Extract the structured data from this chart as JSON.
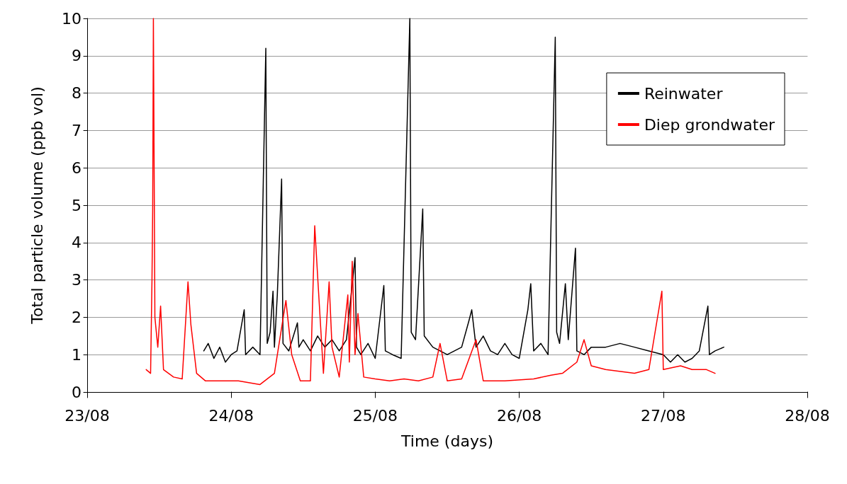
{
  "chart_data": {
    "type": "line",
    "xlabel": "Time (days)",
    "ylabel": "Total particle volume (ppb vol)",
    "xlim": [
      "--08-23",
      "--08-28"
    ],
    "xticks": [
      {
        "value": "--08-23",
        "label": "23/08"
      },
      {
        "value": "--08-24",
        "label": "24/08"
      },
      {
        "value": "--08-25",
        "label": "25/08"
      },
      {
        "value": "--08-26",
        "label": "26/08"
      },
      {
        "value": "--08-27",
        "label": "27/08"
      },
      {
        "value": "--08-28",
        "label": "28/08"
      }
    ],
    "ylim": [
      0,
      10
    ],
    "yticks": [
      0,
      1,
      2,
      3,
      4,
      5,
      6,
      7,
      8,
      9,
      10
    ],
    "grid": "y",
    "legend": "top right",
    "marker": "none",
    "line_style": "solid",
    "series": [
      {
        "name": "Reinwater",
        "color": "#000000",
        "x": [
          "--08-23T19:26",
          "--08-23T20:10",
          "--08-23T21:07",
          "--08-23T22:05",
          "--08-23T23:02",
          "--08-24T00:00",
          "--08-24T00:58",
          "--08-24T02:10",
          "--08-24T02:24",
          "--08-24T03:36",
          "--08-24T04:48",
          "--08-24T05:46",
          "--08-24T06:00",
          "--08-24T06:29",
          "--08-24T06:58",
          "--08-24T07:12",
          "--08-24T07:41",
          "--08-24T08:24",
          "--08-24T08:38",
          "--08-24T09:36",
          "--08-24T11:02",
          "--08-24T11:17",
          "--08-24T12:00",
          "--08-24T13:12",
          "--08-24T14:24",
          "--08-24T15:36",
          "--08-24T16:48",
          "--08-24T18:00",
          "--08-24T19:12",
          "--08-24T20:38",
          "--08-24T20:53",
          "--08-24T21:36",
          "--08-24T22:48",
          "--08-25T00:00",
          "--08-25T01:26",
          "--08-25T01:41",
          "--08-25T02:53",
          "--08-25T04:19",
          "--08-25T05:46",
          "--08-25T06:00",
          "--08-25T06:43",
          "--08-25T07:55",
          "--08-25T08:10",
          "--08-25T09:36",
          "--08-25T10:48",
          "--08-25T12:00",
          "--08-25T13:12",
          "--08-25T14:24",
          "--08-25T15:36",
          "--08-25T16:05",
          "--08-25T16:48",
          "--08-25T18:00",
          "--08-25T19:12",
          "--08-25T20:24",
          "--08-25T21:36",
          "--08-25T22:48",
          "--08-26T00:00",
          "--08-26T01:26",
          "--08-26T01:55",
          "--08-26T02:24",
          "--08-26T03:36",
          "--08-26T04:48",
          "--08-26T06:00",
          "--08-26T06:14",
          "--08-26T06:43",
          "--08-26T07:41",
          "--08-26T08:10",
          "--08-26T09:22",
          "--08-26T09:36",
          "--08-26T10:48",
          "--08-26T12:00",
          "--08-26T14:24",
          "--08-26T16:48",
          "--08-26T19:12",
          "--08-26T21:36",
          "--08-27T00:00",
          "--08-27T01:12",
          "--08-27T02:24",
          "--08-27T03:36",
          "--08-27T04:48",
          "--08-27T06:00",
          "--08-27T07:26",
          "--08-27T07:41",
          "--08-27T08:38",
          "--08-27T10:05"
        ],
        "values": [
          1.1,
          1.3,
          0.9,
          1.2,
          0.8,
          1.0,
          1.1,
          2.2,
          1.0,
          1.2,
          1.0,
          9.2,
          1.3,
          1.6,
          2.7,
          1.2,
          2.6,
          5.7,
          1.3,
          1.1,
          1.85,
          1.2,
          1.4,
          1.1,
          1.5,
          1.2,
          1.4,
          1.1,
          1.4,
          3.6,
          1.2,
          1.0,
          1.3,
          0.9,
          2.85,
          1.1,
          1.0,
          0.9,
          10,
          1.6,
          1.4,
          4.9,
          1.5,
          1.2,
          1.1,
          1.0,
          1.1,
          1.2,
          1.9,
          2.2,
          1.2,
          1.5,
          1.1,
          1.0,
          1.3,
          1.0,
          0.9,
          2.2,
          2.9,
          1.1,
          1.3,
          1.0,
          9.5,
          1.6,
          1.3,
          2.9,
          1.4,
          3.85,
          1.1,
          1.0,
          1.2,
          1.2,
          1.3,
          1.2,
          1.1,
          1.0,
          0.8,
          1.0,
          0.8,
          0.9,
          1.1,
          2.3,
          1.0,
          1.1,
          1.2
        ]
      },
      {
        "name": "Diep grondwater",
        "color": "#ff0000",
        "x": [
          "--08-23T09:50",
          "--08-23T10:34",
          "--08-23T10:48",
          "--08-23T10:55",
          "--08-23T11:02",
          "--08-23T11:17",
          "--08-23T11:46",
          "--08-23T12:14",
          "--08-23T12:43",
          "--08-23T14:24",
          "--08-23T15:50",
          "--08-23T16:48",
          "--08-23T17:17",
          "--08-23T18:14",
          "--08-23T19:41",
          "--08-23T21:36",
          "--08-24T01:12",
          "--08-24T04:48",
          "--08-24T07:12",
          "--08-24T09:07",
          "--08-24T10:05",
          "--08-24T11:31",
          "--08-24T13:12",
          "--08-24T13:55",
          "--08-24T14:24",
          "--08-24T15:22",
          "--08-24T16:19",
          "--08-24T16:48",
          "--08-24T18:00",
          "--08-24T19:26",
          "--08-24T19:41",
          "--08-24T20:10",
          "--08-24T20:38",
          "--08-24T21:07",
          "--08-24T22:05",
          "--08-25T00:00",
          "--08-25T02:24",
          "--08-25T04:48",
          "--08-25T07:12",
          "--08-25T09:36",
          "--08-25T10:48",
          "--08-25T12:00",
          "--08-25T14:24",
          "--08-25T16:48",
          "--08-25T18:00",
          "--08-25T21:36",
          "--08-26T02:24",
          "--08-26T05:17",
          "--08-26T07:12",
          "--08-26T09:36",
          "--08-26T10:48",
          "--08-26T12:00",
          "--08-26T14:24",
          "--08-26T19:12",
          "--08-26T21:36",
          "--08-26T23:46",
          "--08-27T00:00",
          "--08-27T02:53",
          "--08-27T04:48",
          "--08-27T07:12",
          "--08-27T08:38"
        ],
        "values": [
          0.6,
          0.5,
          3.0,
          4.9,
          10,
          2.0,
          1.2,
          2.3,
          0.6,
          0.4,
          0.35,
          2.95,
          1.8,
          0.5,
          0.3,
          0.3,
          0.3,
          0.2,
          0.5,
          2.45,
          1.0,
          0.3,
          0.3,
          4.45,
          3.1,
          0.5,
          2.95,
          1.2,
          0.4,
          2.6,
          0.8,
          3.5,
          1.0,
          2.1,
          0.4,
          0.35,
          0.3,
          0.35,
          0.3,
          0.4,
          1.3,
          0.3,
          0.35,
          1.4,
          0.3,
          0.3,
          0.35,
          0.45,
          0.5,
          0.8,
          1.4,
          0.7,
          0.6,
          0.5,
          0.6,
          2.7,
          0.6,
          0.7,
          0.6,
          0.6,
          0.5
        ]
      }
    ]
  }
}
